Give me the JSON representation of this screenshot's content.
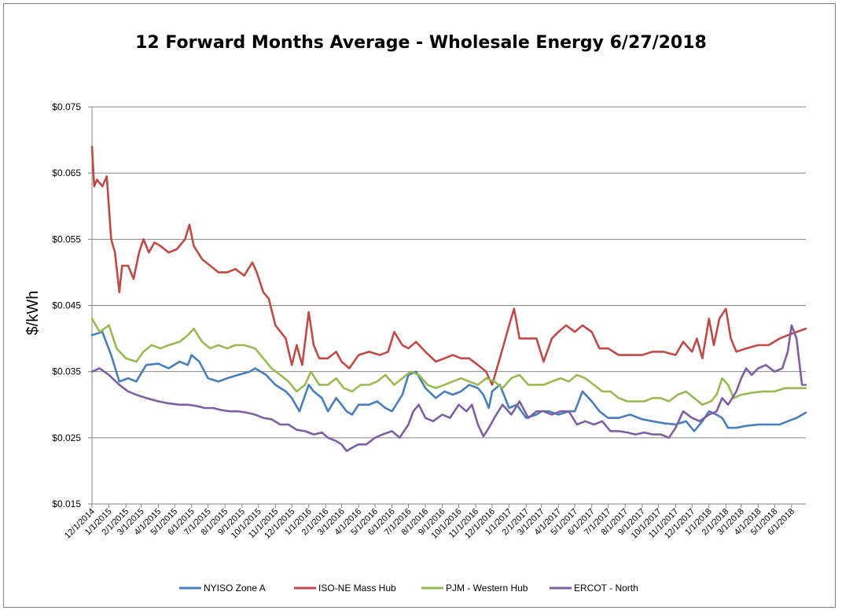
{
  "chart_data": {
    "type": "line",
    "title": "12 Forward Months Average - Wholesale Energy 6/27/2018",
    "xlabel": "",
    "ylabel": "$/kWh",
    "ylim": [
      0.015,
      0.075
    ],
    "xlim": [
      "2014-12-01",
      "2018-06-27"
    ],
    "yticks": [
      "$0.015",
      "$0.025",
      "$0.035",
      "$0.045",
      "$0.055",
      "$0.065",
      "$0.075"
    ],
    "yticks_values": [
      0.015,
      0.025,
      0.035,
      0.045,
      0.055,
      0.065,
      0.075
    ],
    "xticks": [
      "12/1/2014",
      "1/1/2015",
      "2/1/2015",
      "3/1/2015",
      "4/1/2015",
      "5/1/2015",
      "6/1/2015",
      "7/1/2015",
      "8/1/2015",
      "9/1/2015",
      "10/1/2015",
      "11/1/2015",
      "12/1/2015",
      "1/1/2016",
      "2/1/2016",
      "3/1/2016",
      "4/1/2016",
      "5/1/2016",
      "6/1/2016",
      "7/1/2016",
      "8/1/2016",
      "9/1/2016",
      "10/1/2016",
      "11/1/2016",
      "12/1/2016",
      "1/1/2017",
      "2/1/2017",
      "3/1/2017",
      "4/1/2017",
      "5/1/2017",
      "6/1/2017",
      "7/1/2017",
      "8/1/2017",
      "9/1/2017",
      "10/1/2017",
      "11/1/2017",
      "12/1/2017",
      "1/1/2018",
      "2/1/2018",
      "3/1/2018",
      "4/1/2018",
      "5/1/2018",
      "6/1/2018"
    ],
    "grid": true,
    "legend_position": "bottom",
    "series": [
      {
        "name": "NYISO Zone A",
        "color": "#4a7ebb",
        "x": [
          "2014-12-01",
          "2014-12-20",
          "2015-01-05",
          "2015-01-20",
          "2015-02-05",
          "2015-02-20",
          "2015-03-10",
          "2015-04-01",
          "2015-04-20",
          "2015-05-10",
          "2015-05-25",
          "2015-06-01",
          "2015-06-15",
          "2015-07-01",
          "2015-07-20",
          "2015-08-05",
          "2015-08-25",
          "2015-09-15",
          "2015-09-25",
          "2015-10-15",
          "2015-11-01",
          "2015-11-20",
          "2015-12-01",
          "2015-12-15",
          "2016-01-01",
          "2016-01-10",
          "2016-01-25",
          "2016-02-05",
          "2016-02-20",
          "2016-03-01",
          "2016-03-10",
          "2016-03-20",
          "2016-04-01",
          "2016-04-20",
          "2016-05-05",
          "2016-05-20",
          "2016-06-01",
          "2016-06-20",
          "2016-07-01",
          "2016-07-15",
          "2016-08-01",
          "2016-08-20",
          "2016-09-05",
          "2016-09-20",
          "2016-10-05",
          "2016-10-20",
          "2016-11-05",
          "2016-11-15",
          "2016-11-25",
          "2016-12-01",
          "2016-12-15",
          "2017-01-01",
          "2017-01-15",
          "2017-02-01",
          "2017-02-20",
          "2017-03-01",
          "2017-03-15",
          "2017-04-01",
          "2017-04-20",
          "2017-05-01",
          "2017-05-15",
          "2017-06-01",
          "2017-06-15",
          "2017-07-01",
          "2017-07-20",
          "2017-08-10",
          "2017-09-01",
          "2017-09-20",
          "2017-10-10",
          "2017-11-01",
          "2017-11-20",
          "2017-12-05",
          "2017-12-20",
          "2018-01-01",
          "2018-01-15",
          "2018-01-25",
          "2018-02-05",
          "2018-02-20",
          "2018-03-10",
          "2018-04-01",
          "2018-04-20",
          "2018-05-10",
          "2018-05-25",
          "2018-06-10",
          "2018-06-27"
        ],
        "y": [
          0.0405,
          0.041,
          0.0375,
          0.0335,
          0.034,
          0.0335,
          0.036,
          0.0362,
          0.0355,
          0.0365,
          0.036,
          0.0375,
          0.0365,
          0.034,
          0.0335,
          0.034,
          0.0345,
          0.035,
          0.0355,
          0.0345,
          0.033,
          0.032,
          0.031,
          0.029,
          0.033,
          0.032,
          0.031,
          0.029,
          0.031,
          0.03,
          0.029,
          0.0285,
          0.03,
          0.03,
          0.0305,
          0.0295,
          0.029,
          0.0315,
          0.0345,
          0.035,
          0.0325,
          0.031,
          0.032,
          0.0315,
          0.032,
          0.033,
          0.0325,
          0.0315,
          0.0295,
          0.032,
          0.033,
          0.0295,
          0.03,
          0.028,
          0.0285,
          0.029,
          0.029,
          0.0285,
          0.029,
          0.029,
          0.032,
          0.0305,
          0.029,
          0.028,
          0.028,
          0.0285,
          0.0278,
          0.0275,
          0.0272,
          0.027,
          0.0275,
          0.026,
          0.0275,
          0.029,
          0.0285,
          0.028,
          0.0265,
          0.0265,
          0.0268,
          0.027,
          0.027,
          0.027,
          0.0275,
          0.028,
          0.0288
        ]
      },
      {
        "name": "ISO-NE Mass Hub",
        "color": "#be4b48",
        "x": [
          "2014-12-01",
          "2014-12-05",
          "2014-12-10",
          "2014-12-20",
          "2014-12-28",
          "2015-01-05",
          "2015-01-12",
          "2015-01-20",
          "2015-01-25",
          "2015-02-05",
          "2015-02-15",
          "2015-02-25",
          "2015-03-05",
          "2015-03-15",
          "2015-03-25",
          "2015-04-05",
          "2015-04-20",
          "2015-05-05",
          "2015-05-20",
          "2015-05-28",
          "2015-06-05",
          "2015-06-20",
          "2015-07-05",
          "2015-07-20",
          "2015-08-05",
          "2015-08-20",
          "2015-09-05",
          "2015-09-20",
          "2015-09-28",
          "2015-10-10",
          "2015-10-20",
          "2015-11-01",
          "2015-11-20",
          "2015-12-01",
          "2015-12-10",
          "2015-12-20",
          "2016-01-01",
          "2016-01-10",
          "2016-01-20",
          "2016-02-05",
          "2016-02-20",
          "2016-03-01",
          "2016-03-15",
          "2016-04-01",
          "2016-04-20",
          "2016-05-10",
          "2016-05-25",
          "2016-06-05",
          "2016-06-20",
          "2016-07-01",
          "2016-07-15",
          "2016-08-01",
          "2016-08-20",
          "2016-09-05",
          "2016-09-20",
          "2016-10-05",
          "2016-10-20",
          "2016-11-05",
          "2016-11-20",
          "2016-12-01",
          "2016-12-15",
          "2017-01-01",
          "2017-01-10",
          "2017-01-20",
          "2017-02-01",
          "2017-02-20",
          "2017-03-05",
          "2017-03-20",
          "2017-04-01",
          "2017-04-15",
          "2017-05-01",
          "2017-05-15",
          "2017-06-01",
          "2017-06-15",
          "2017-07-01",
          "2017-07-20",
          "2017-08-10",
          "2017-09-01",
          "2017-09-20",
          "2017-10-10",
          "2017-11-01",
          "2017-11-15",
          "2017-12-01",
          "2017-12-10",
          "2017-12-20",
          "2018-01-01",
          "2018-01-10",
          "2018-01-20",
          "2018-02-01",
          "2018-02-10",
          "2018-02-20",
          "2018-03-10",
          "2018-04-01",
          "2018-04-20",
          "2018-05-10",
          "2018-05-25",
          "2018-06-10",
          "2018-06-27"
        ],
        "y": [
          0.069,
          0.063,
          0.064,
          0.063,
          0.0645,
          0.055,
          0.053,
          0.047,
          0.051,
          0.051,
          0.049,
          0.053,
          0.055,
          0.053,
          0.0545,
          0.054,
          0.053,
          0.0535,
          0.055,
          0.0572,
          0.054,
          0.052,
          0.051,
          0.05,
          0.05,
          0.0505,
          0.0495,
          0.0515,
          0.05,
          0.047,
          0.046,
          0.042,
          0.04,
          0.036,
          0.039,
          0.036,
          0.044,
          0.039,
          0.037,
          0.037,
          0.038,
          0.0365,
          0.0355,
          0.0375,
          0.038,
          0.0375,
          0.038,
          0.041,
          0.039,
          0.0385,
          0.0395,
          0.038,
          0.0365,
          0.037,
          0.0375,
          0.037,
          0.037,
          0.036,
          0.035,
          0.033,
          0.037,
          0.042,
          0.0445,
          0.04,
          0.04,
          0.04,
          0.0365,
          0.04,
          0.041,
          0.042,
          0.041,
          0.042,
          0.041,
          0.0385,
          0.0385,
          0.0375,
          0.0375,
          0.0375,
          0.038,
          0.038,
          0.0375,
          0.0395,
          0.038,
          0.04,
          0.037,
          0.043,
          0.039,
          0.043,
          0.0445,
          0.04,
          0.038,
          0.0385,
          0.039,
          0.039,
          0.04,
          0.0405,
          0.041,
          0.0415
        ]
      },
      {
        "name": "PJM - Western Hub",
        "color": "#98b954",
        "x": [
          "2014-12-01",
          "2014-12-15",
          "2015-01-01",
          "2015-01-15",
          "2015-02-01",
          "2015-02-20",
          "2015-03-05",
          "2015-03-20",
          "2015-04-05",
          "2015-04-20",
          "2015-05-10",
          "2015-05-25",
          "2015-06-05",
          "2015-06-20",
          "2015-07-05",
          "2015-07-20",
          "2015-08-05",
          "2015-08-20",
          "2015-09-05",
          "2015-09-25",
          "2015-10-10",
          "2015-10-25",
          "2015-11-10",
          "2015-11-25",
          "2015-12-10",
          "2015-12-25",
          "2016-01-05",
          "2016-01-20",
          "2016-02-05",
          "2016-02-20",
          "2016-03-05",
          "2016-03-20",
          "2016-04-05",
          "2016-04-20",
          "2016-05-05",
          "2016-05-20",
          "2016-06-05",
          "2016-06-20",
          "2016-07-05",
          "2016-07-20",
          "2016-08-05",
          "2016-08-20",
          "2016-09-05",
          "2016-09-20",
          "2016-10-05",
          "2016-10-20",
          "2016-11-05",
          "2016-11-20",
          "2016-12-05",
          "2016-12-20",
          "2017-01-05",
          "2017-01-20",
          "2017-02-05",
          "2017-02-20",
          "2017-03-05",
          "2017-03-20",
          "2017-04-05",
          "2017-04-20",
          "2017-05-05",
          "2017-05-20",
          "2017-06-05",
          "2017-06-20",
          "2017-07-05",
          "2017-07-20",
          "2017-08-05",
          "2017-08-20",
          "2017-09-05",
          "2017-09-20",
          "2017-10-05",
          "2017-10-20",
          "2017-11-05",
          "2017-11-20",
          "2017-12-05",
          "2017-12-20",
          "2018-01-05",
          "2018-01-15",
          "2018-01-25",
          "2018-02-05",
          "2018-02-15",
          "2018-03-01",
          "2018-03-20",
          "2018-04-10",
          "2018-05-01",
          "2018-05-20",
          "2018-06-10",
          "2018-06-27"
        ],
        "y": [
          0.043,
          0.041,
          0.042,
          0.0385,
          0.037,
          0.0365,
          0.038,
          0.039,
          0.0385,
          0.039,
          0.0395,
          0.0405,
          0.0415,
          0.0395,
          0.0385,
          0.039,
          0.0385,
          0.039,
          0.039,
          0.0385,
          0.037,
          0.0355,
          0.0345,
          0.0335,
          0.032,
          0.033,
          0.035,
          0.033,
          0.033,
          0.034,
          0.0325,
          0.032,
          0.033,
          0.033,
          0.0335,
          0.0345,
          0.033,
          0.034,
          0.035,
          0.0345,
          0.033,
          0.0325,
          0.033,
          0.0335,
          0.034,
          0.0335,
          0.033,
          0.034,
          0.0335,
          0.0325,
          0.034,
          0.0345,
          0.033,
          0.033,
          0.033,
          0.0335,
          0.034,
          0.0335,
          0.0345,
          0.034,
          0.033,
          0.032,
          0.032,
          0.031,
          0.0305,
          0.0305,
          0.0305,
          0.031,
          0.031,
          0.0305,
          0.0315,
          0.032,
          0.031,
          0.03,
          0.0305,
          0.0315,
          0.034,
          0.033,
          0.031,
          0.0315,
          0.0318,
          0.032,
          0.032,
          0.0325,
          0.0325,
          0.0325
        ]
      },
      {
        "name": "ERCOT - North",
        "color": "#7d60a0",
        "x": [
          "2014-12-01",
          "2014-12-15",
          "2015-01-01",
          "2015-01-20",
          "2015-02-05",
          "2015-02-20",
          "2015-03-10",
          "2015-04-01",
          "2015-04-20",
          "2015-05-10",
          "2015-05-25",
          "2015-06-10",
          "2015-06-25",
          "2015-07-10",
          "2015-07-25",
          "2015-08-10",
          "2015-08-25",
          "2015-09-10",
          "2015-09-25",
          "2015-10-10",
          "2015-10-25",
          "2015-11-10",
          "2015-11-25",
          "2015-12-10",
          "2015-12-25",
          "2016-01-10",
          "2016-01-25",
          "2016-02-05",
          "2016-02-20",
          "2016-03-01",
          "2016-03-10",
          "2016-03-20",
          "2016-04-01",
          "2016-04-15",
          "2016-05-01",
          "2016-05-15",
          "2016-06-01",
          "2016-06-15",
          "2016-07-01",
          "2016-07-10",
          "2016-07-20",
          "2016-08-01",
          "2016-08-15",
          "2016-09-01",
          "2016-09-15",
          "2016-10-01",
          "2016-10-15",
          "2016-10-25",
          "2016-11-05",
          "2016-11-15",
          "2016-11-25",
          "2016-12-05",
          "2016-12-20",
          "2017-01-05",
          "2017-01-20",
          "2017-02-05",
          "2017-02-20",
          "2017-03-05",
          "2017-03-20",
          "2017-04-05",
          "2017-04-20",
          "2017-05-05",
          "2017-05-20",
          "2017-06-05",
          "2017-06-20",
          "2017-07-05",
          "2017-07-20",
          "2017-08-05",
          "2017-08-20",
          "2017-09-05",
          "2017-09-20",
          "2017-10-05",
          "2017-10-20",
          "2017-11-01",
          "2017-11-15",
          "2017-12-01",
          "2017-12-15",
          "2018-01-01",
          "2018-01-15",
          "2018-01-25",
          "2018-02-05",
          "2018-02-20",
          "2018-03-01",
          "2018-03-10",
          "2018-03-20",
          "2018-04-01",
          "2018-04-15",
          "2018-05-01",
          "2018-05-15",
          "2018-05-25",
          "2018-06-01",
          "2018-06-10",
          "2018-06-20",
          "2018-06-27"
        ],
        "y": [
          0.035,
          0.0355,
          0.0345,
          0.033,
          0.032,
          0.0315,
          0.031,
          0.0305,
          0.0302,
          0.03,
          0.03,
          0.0298,
          0.0295,
          0.0295,
          0.0292,
          0.029,
          0.029,
          0.0288,
          0.0285,
          0.028,
          0.0278,
          0.027,
          0.027,
          0.0262,
          0.026,
          0.0255,
          0.0258,
          0.025,
          0.0245,
          0.024,
          0.023,
          0.0235,
          0.024,
          0.024,
          0.025,
          0.0255,
          0.026,
          0.025,
          0.027,
          0.029,
          0.03,
          0.028,
          0.0275,
          0.0285,
          0.028,
          0.03,
          0.029,
          0.03,
          0.027,
          0.0252,
          0.0265,
          0.028,
          0.03,
          0.0285,
          0.0305,
          0.028,
          0.029,
          0.029,
          0.0285,
          0.029,
          0.029,
          0.027,
          0.0275,
          0.027,
          0.0275,
          0.026,
          0.026,
          0.0258,
          0.0255,
          0.0258,
          0.0255,
          0.0255,
          0.025,
          0.0265,
          0.029,
          0.028,
          0.0275,
          0.0285,
          0.029,
          0.031,
          0.03,
          0.032,
          0.034,
          0.0355,
          0.0345,
          0.0355,
          0.036,
          0.035,
          0.0355,
          0.038,
          0.042,
          0.04,
          0.033,
          0.033
        ]
      }
    ]
  }
}
